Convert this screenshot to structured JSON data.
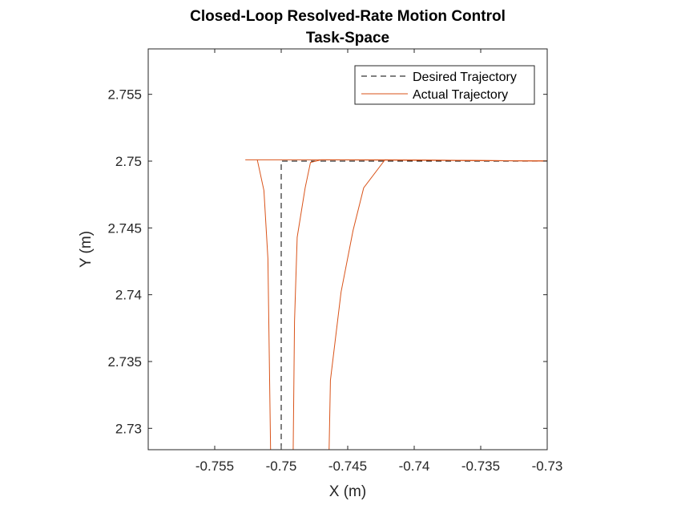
{
  "chart_data": {
    "type": "line",
    "title": [
      "Closed-Loop Resolved-Rate Motion Control",
      "Task-Space"
    ],
    "xlabel": "X (m)",
    "ylabel": "Y (m)",
    "xlim": [
      -0.76,
      -0.73
    ],
    "ylim": [
      2.7284,
      2.7584
    ],
    "x_ticks": [
      -0.755,
      -0.75,
      -0.745,
      -0.74,
      -0.735,
      -0.73
    ],
    "x_tick_labels": [
      "-0.755",
      "-0.75",
      "-0.745",
      "-0.74",
      "-0.735",
      "-0.73"
    ],
    "y_ticks": [
      2.73,
      2.735,
      2.74,
      2.745,
      2.75,
      2.755
    ],
    "y_tick_labels": [
      "2.73",
      "2.735",
      "2.74",
      "2.745",
      "2.75",
      "2.755"
    ],
    "grid": false,
    "legend_position": "top-right",
    "series": [
      {
        "name": "Desired Trajectory",
        "style": "dashed",
        "color": "#000000",
        "points": [
          [
            -0.73,
            2.75
          ],
          [
            -0.75,
            2.75
          ],
          [
            -0.75,
            2.7284
          ]
        ]
      },
      {
        "name": "Actual Trajectory",
        "style": "solid",
        "color": "#D95319",
        "lines": [
          [
            [
              -0.7284,
              2.75
            ],
            [
              -0.7426,
              2.7501
            ],
            [
              -0.7527,
              2.7501
            ],
            [
              -0.7518,
              2.7501
            ],
            [
              -0.7513,
              2.7478
            ],
            [
              -0.751,
              2.7427
            ],
            [
              -0.7508,
              2.7284
            ]
          ],
          [
            [
              -0.7284,
              2.75
            ],
            [
              -0.747,
              2.7501
            ],
            [
              -0.7478,
              2.7499
            ],
            [
              -0.7482,
              2.748
            ],
            [
              -0.7488,
              2.7443
            ],
            [
              -0.749,
              2.738
            ],
            [
              -0.7491,
              2.7284
            ]
          ],
          [
            [
              -0.7284,
              2.75
            ],
            [
              -0.7422,
              2.7501
            ],
            [
              -0.7438,
              2.748
            ],
            [
              -0.7446,
              2.7448
            ],
            [
              -0.7455,
              2.7402
            ],
            [
              -0.7463,
              2.7336
            ],
            [
              -0.7464,
              2.7284
            ]
          ]
        ]
      }
    ]
  },
  "colors": {
    "desired": "#000000",
    "actual": "#D95319",
    "axes": "#262626"
  }
}
